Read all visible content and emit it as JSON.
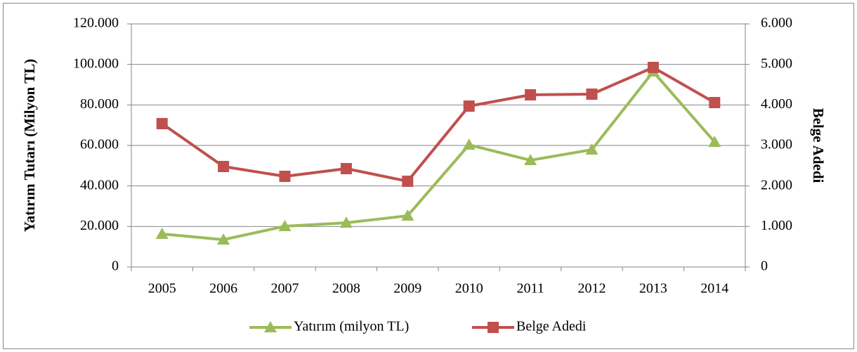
{
  "chart_data": {
    "type": "line",
    "ylabel": "Yatırım Tutarı (Milyon TL)",
    "y2label": "Belge Adedi",
    "categories": [
      "2005",
      "2006",
      "2007",
      "2008",
      "2009",
      "2010",
      "2011",
      "2012",
      "2013",
      "2014"
    ],
    "series": [
      {
        "name": "Yatırım (milyon TL)",
        "color": "#9bbb59",
        "marker": "triangle",
        "values": [
          16300,
          13500,
          20100,
          21800,
          25300,
          60300,
          52700,
          57900,
          96400,
          61700
        ]
      },
      {
        "name": "Belge Adedi",
        "color": "#c0504d",
        "marker": "square",
        "axis": "y2",
        "values": [
          3538,
          2480,
          2237,
          2428,
          2116,
          3971,
          4249,
          4266,
          4925,
          4058
        ]
      }
    ],
    "ylim": [
      0,
      120000
    ],
    "yticks": [
      0,
      {
        "value": 20000,
        "label": "20.000"
      },
      {
        "value": 40000,
        "label": "40.000"
      },
      {
        "value": 60000,
        "label": "60.000"
      },
      {
        "value": 80000,
        "label": "80.000"
      },
      {
        "value": 100000,
        "label": "100.000"
      },
      {
        "value": 120000,
        "label": "120.000"
      }
    ],
    "y2lim": [
      0,
      6000
    ],
    "y2ticks": [
      0,
      {
        "value": 1000,
        "label": "1.000"
      },
      {
        "value": 2000,
        "label": "2.000"
      },
      {
        "value": 3000,
        "label": "3.000"
      },
      {
        "value": 4000,
        "label": "4.000"
      },
      {
        "value": 5000,
        "label": "5.000"
      },
      {
        "value": 6000,
        "label": "6.000"
      }
    ],
    "grid": true,
    "legend": "bottom"
  }
}
